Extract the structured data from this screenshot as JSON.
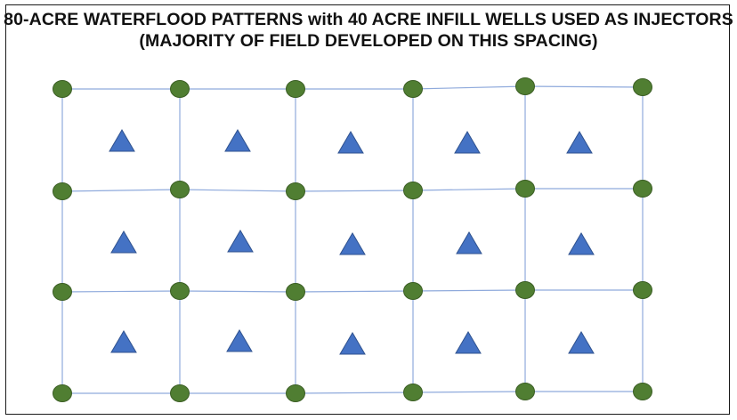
{
  "title": {
    "line1": "80-ACRE WATERFLOOD PATTERNS with 40 ACRE INFILL WELLS USED AS INJECTORS",
    "line2": "(MAJORITY OF FIELD DEVELOPED ON THIS SPACING)"
  },
  "colors": {
    "grid_line": "#8faadc",
    "producer_fill": "#507e32",
    "producer_stroke": "#3b5e24",
    "injector_fill": "#4472c4",
    "injector_stroke": "#2f528f",
    "border": "#1a1a1a",
    "title": "#111111"
  },
  "diagram": {
    "producer_symbol": "green-circle",
    "injector_symbol": "blue-triangle",
    "producer_rows": 4,
    "producer_cols": 6,
    "injector_rows": 3,
    "injector_cols": 5
  }
}
